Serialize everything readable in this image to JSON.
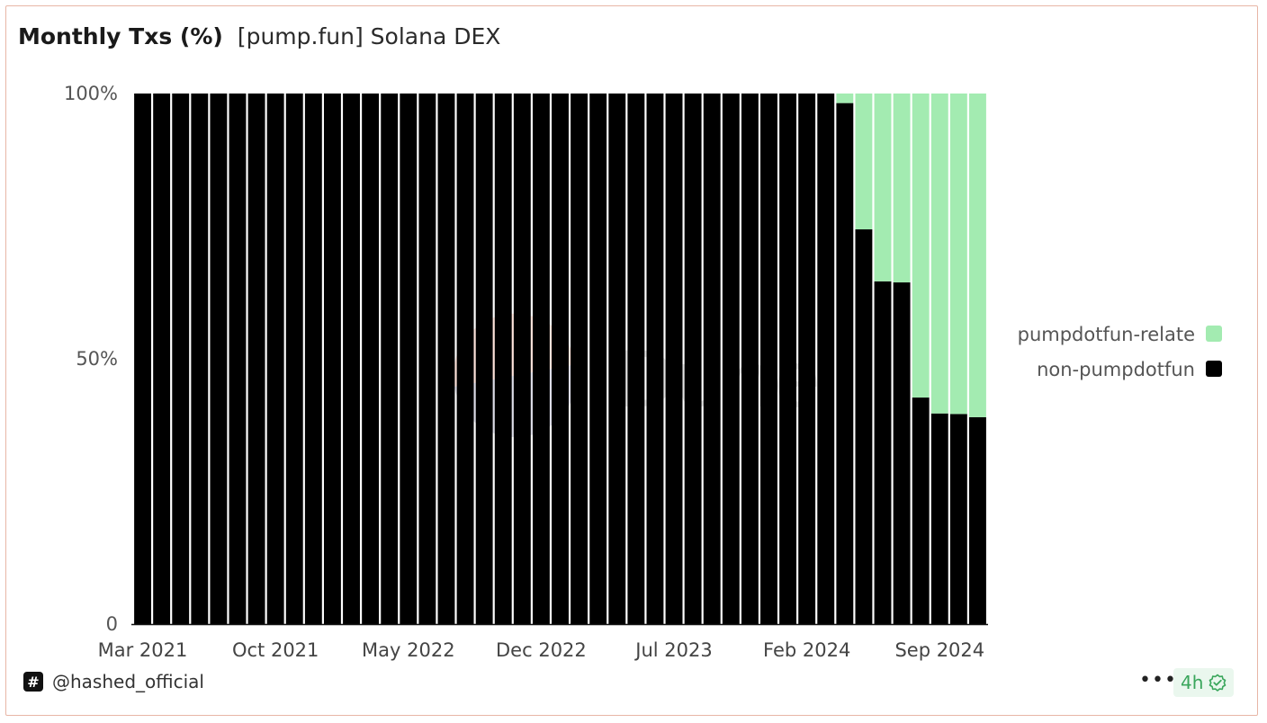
{
  "title": "Monthly Txs (%)",
  "subtitle": "[pump.fun] Solana DEX",
  "chart_data": {
    "type": "bar",
    "stacked": true,
    "normalized": true,
    "categories": [
      "Mar 2021",
      "Apr 2021",
      "May 2021",
      "Jun 2021",
      "Jul 2021",
      "Aug 2021",
      "Sep 2021",
      "Oct 2021",
      "Nov 2021",
      "Dec 2021",
      "Jan 2022",
      "Feb 2022",
      "Mar 2022",
      "Apr 2022",
      "May 2022",
      "Jun 2022",
      "Jul 2022",
      "Aug 2022",
      "Sep 2022",
      "Oct 2022",
      "Nov 2022",
      "Dec 2022",
      "Jan 2023",
      "Feb 2023",
      "Mar 2023",
      "Apr 2023",
      "May 2023",
      "Jun 2023",
      "Jul 2023",
      "Aug 2023",
      "Sep 2023",
      "Oct 2023",
      "Nov 2023",
      "Dec 2023",
      "Jan 2024",
      "Feb 2024",
      "Mar 2024",
      "Apr 2024",
      "May 2024",
      "Jun 2024",
      "Jul 2024",
      "Aug 2024",
      "Sep 2024",
      "Oct 2024",
      "Nov 2024"
    ],
    "x_tick_labels": [
      "Mar 2021",
      "Oct 2021",
      "May 2022",
      "Dec 2022",
      "Jul 2023",
      "Feb 2024",
      "Sep 2024"
    ],
    "y_tick_labels": [
      "100%",
      "50%",
      "0"
    ],
    "ylim": [
      0,
      100
    ],
    "series": [
      {
        "name": "non-pumpdotfun",
        "color": "#000000",
        "values": [
          100,
          100,
          100,
          100,
          100,
          100,
          100,
          100,
          100,
          100,
          100,
          100,
          100,
          100,
          100,
          100,
          100,
          100,
          100,
          100,
          100,
          100,
          100,
          100,
          100,
          100,
          100,
          100,
          100,
          100,
          100,
          100,
          100,
          100,
          100,
          100,
          100,
          98.2,
          74.4,
          64.6,
          64.4,
          42.7,
          39.7,
          39.6,
          39.0
        ]
      },
      {
        "name": "pumpdotfun-related",
        "color": "#a3ebb1",
        "values": [
          0,
          0,
          0,
          0,
          0,
          0,
          0,
          0,
          0,
          0,
          0,
          0,
          0,
          0,
          0,
          0,
          0,
          0,
          0,
          0,
          0,
          0,
          0,
          0,
          0,
          0,
          0,
          0,
          0,
          0,
          0,
          0,
          0,
          0,
          0,
          0,
          0,
          1.8,
          25.6,
          35.4,
          35.6,
          57.3,
          60.3,
          60.4,
          61.0
        ]
      }
    ],
    "legend": {
      "placement": "right",
      "entries": [
        {
          "label": "pumpdotfun-relate",
          "color": "#a3ebb1"
        },
        {
          "label": "non-pumpdotfun",
          "color": "#000000"
        }
      ]
    },
    "watermark": "Dune",
    "grid": false
  },
  "footer": {
    "username": "@hashed_official",
    "hash_glyph": "#",
    "more_label": "•••",
    "age_label": "4h"
  }
}
